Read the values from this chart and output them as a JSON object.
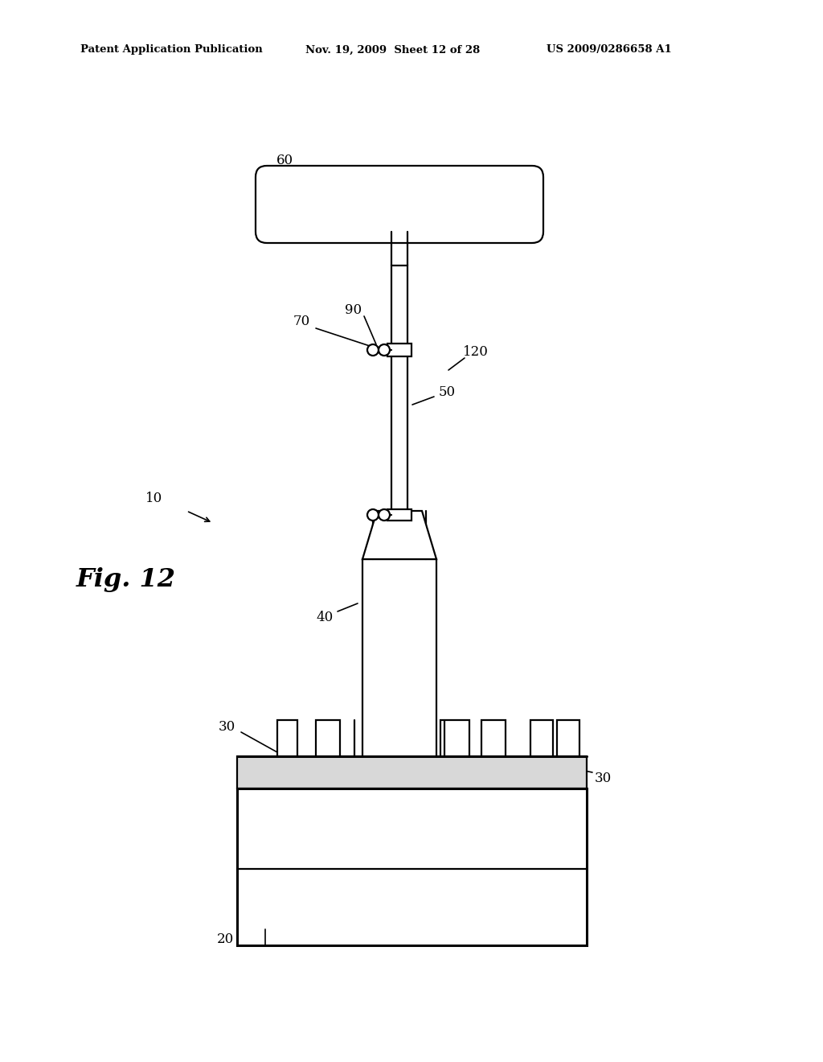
{
  "bg_color": "#ffffff",
  "lc": "#000000",
  "header_left": "Patent Application Publication",
  "header_mid": "Nov. 19, 2009  Sheet 12 of 28",
  "header_right": "US 2009/0286658 A1",
  "lw_thin": 1.2,
  "lw_main": 1.6,
  "lw_thick": 2.2
}
